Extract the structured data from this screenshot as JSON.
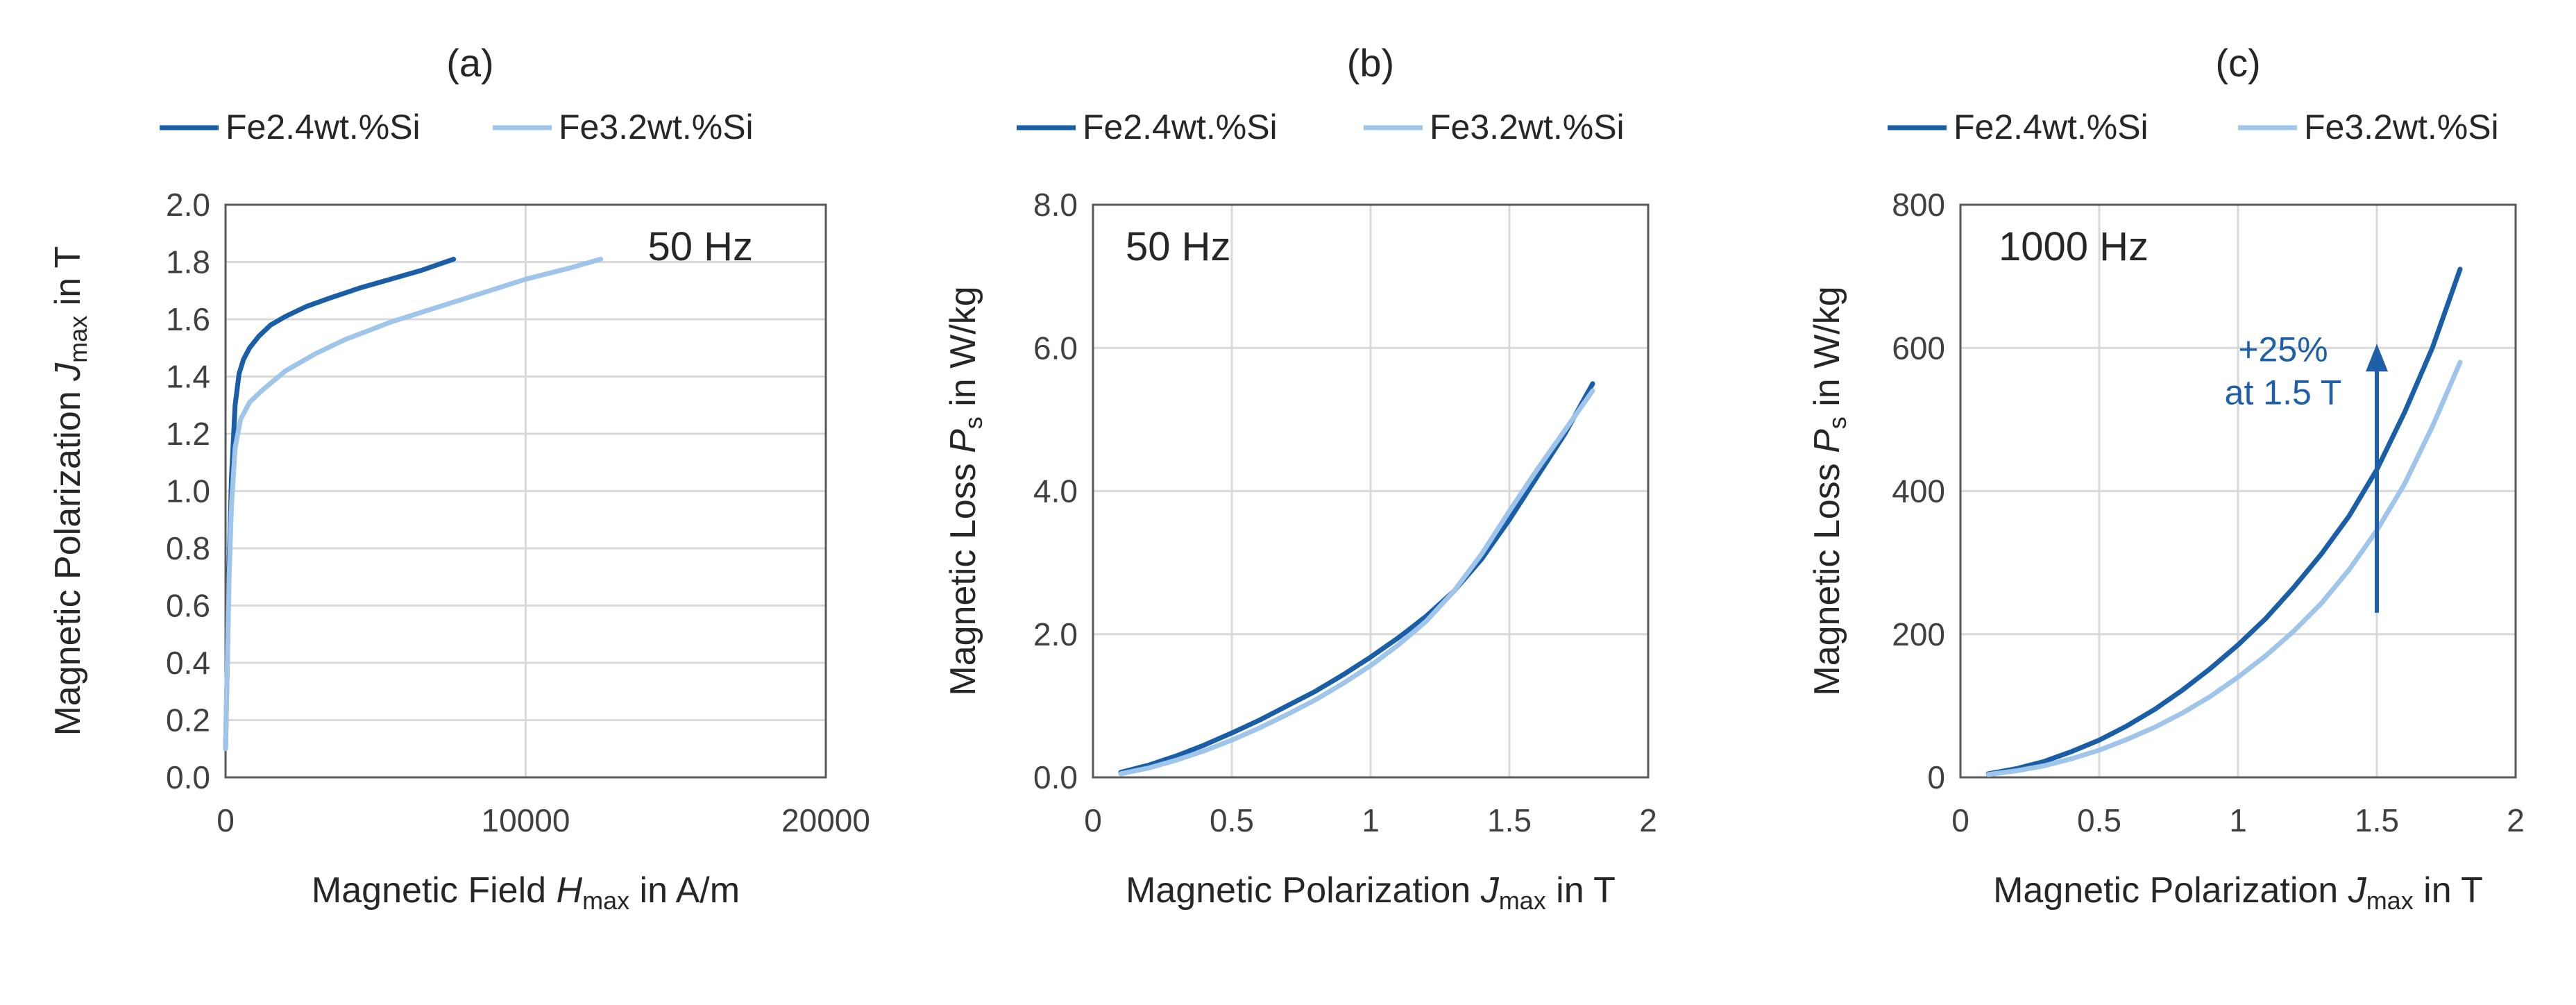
{
  "colors": {
    "series_dark": "#1a5ea8",
    "series_light": "#9fc5ea",
    "annotation": "#1f5fa8",
    "grid": "#d9d9d9"
  },
  "chart_data": [
    {
      "panel_label": "(a)",
      "type": "line",
      "title": "(a)",
      "frequency_label": "50 Hz",
      "xlabel": {
        "prefix": "Magnetic Field ",
        "symbol": "H",
        "sub": "max",
        "suffix": " in A/m"
      },
      "ylabel": {
        "prefix": "Magnetic Polarization ",
        "symbol": "J",
        "sub": "max",
        "suffix": " in T"
      },
      "xlim": [
        0,
        20000
      ],
      "ylim": [
        0,
        2.0
      ],
      "xticks": [
        0,
        10000,
        20000
      ],
      "xtick_labels": [
        "0",
        "10000",
        "20000"
      ],
      "yticks": [
        0,
        0.2,
        0.4,
        0.6,
        0.8,
        1.0,
        1.2,
        1.4,
        1.6,
        1.8,
        2.0
      ],
      "ytick_labels": [
        "0.0",
        "0.2",
        "0.4",
        "0.6",
        "0.8",
        "1.0",
        "1.2",
        "1.4",
        "1.6",
        "1.8",
        "2.0"
      ],
      "grid": true,
      "legend": [
        "Fe2.4wt.%Si",
        "Fe3.2wt.%Si"
      ],
      "series": [
        {
          "name": "Fe2.4wt.%Si",
          "color": "#1a5ea8",
          "x": [
            0,
            60,
            120,
            200,
            320,
            450,
            600,
            800,
            1100,
            1500,
            2000,
            2700,
            3500,
            4500,
            5500,
            6500,
            7600
          ],
          "y": [
            0.1,
            0.4,
            0.75,
            1.05,
            1.3,
            1.41,
            1.46,
            1.5,
            1.54,
            1.58,
            1.61,
            1.645,
            1.675,
            1.71,
            1.74,
            1.77,
            1.81
          ]
        },
        {
          "name": "Fe3.2wt.%Si",
          "color": "#9fc5ea",
          "x": [
            0,
            60,
            120,
            200,
            320,
            500,
            800,
            1200,
            2000,
            3000,
            4000,
            5500,
            7000,
            8500,
            10000,
            11500,
            12500
          ],
          "y": [
            0.1,
            0.4,
            0.7,
            0.95,
            1.15,
            1.25,
            1.31,
            1.35,
            1.42,
            1.48,
            1.53,
            1.59,
            1.64,
            1.69,
            1.74,
            1.78,
            1.81
          ]
        }
      ]
    },
    {
      "panel_label": "(b)",
      "type": "line",
      "title": "(b)",
      "frequency_label": "50 Hz",
      "xlabel": {
        "prefix": "Magnetic Polarization ",
        "symbol": "J",
        "sub": "max",
        "suffix": " in T"
      },
      "ylabel": {
        "prefix": "Magnetic Loss ",
        "symbol": "P",
        "sub": "s",
        "suffix": " in W/kg"
      },
      "xlim": [
        0,
        2
      ],
      "ylim": [
        0,
        8.0
      ],
      "xticks": [
        0,
        0.5,
        1,
        1.5,
        2
      ],
      "xtick_labels": [
        "0",
        "0.5",
        "1",
        "1.5",
        "2"
      ],
      "yticks": [
        0,
        2,
        4,
        6,
        8
      ],
      "ytick_labels": [
        "0.0",
        "2.0",
        "4.0",
        "6.0",
        "8.0"
      ],
      "grid": true,
      "legend": [
        "Fe2.4wt.%Si",
        "Fe3.2wt.%Si"
      ],
      "series": [
        {
          "name": "Fe2.4wt.%Si",
          "color": "#1a5ea8",
          "x": [
            0.1,
            0.2,
            0.3,
            0.4,
            0.5,
            0.6,
            0.7,
            0.8,
            0.9,
            1.0,
            1.1,
            1.2,
            1.3,
            1.4,
            1.5,
            1.6,
            1.7,
            1.8
          ],
          "y": [
            0.07,
            0.17,
            0.3,
            0.45,
            0.62,
            0.8,
            1.0,
            1.2,
            1.43,
            1.68,
            1.95,
            2.25,
            2.6,
            3.05,
            3.6,
            4.2,
            4.8,
            5.5
          ]
        },
        {
          "name": "Fe3.2wt.%Si",
          "color": "#9fc5ea",
          "x": [
            0.1,
            0.2,
            0.3,
            0.4,
            0.5,
            0.6,
            0.7,
            0.8,
            0.9,
            1.0,
            1.1,
            1.2,
            1.3,
            1.4,
            1.5,
            1.6,
            1.7,
            1.8
          ],
          "y": [
            0.05,
            0.13,
            0.24,
            0.37,
            0.52,
            0.69,
            0.88,
            1.08,
            1.31,
            1.56,
            1.85,
            2.18,
            2.6,
            3.12,
            3.72,
            4.3,
            4.85,
            5.4
          ]
        }
      ]
    },
    {
      "panel_label": "(c)",
      "type": "line",
      "title": "(c)",
      "frequency_label": "1000 Hz",
      "xlabel": {
        "prefix": "Magnetic Polarization ",
        "symbol": "J",
        "sub": "max",
        "suffix": " in T"
      },
      "ylabel": {
        "prefix": "Magnetic Loss ",
        "symbol": "P",
        "sub": "s",
        "suffix": " in W/kg"
      },
      "xlim": [
        0,
        2
      ],
      "ylim": [
        0,
        800
      ],
      "xticks": [
        0,
        0.5,
        1,
        1.5,
        2
      ],
      "xtick_labels": [
        "0",
        "0.5",
        "1",
        "1.5",
        "2"
      ],
      "yticks": [
        0,
        200,
        400,
        600,
        800
      ],
      "ytick_labels": [
        "0",
        "200",
        "400",
        "600",
        "800"
      ],
      "grid": true,
      "legend": [
        "Fe2.4wt.%Si",
        "Fe3.2wt.%Si"
      ],
      "annotation": {
        "lines": [
          "+25%",
          "at 1.5 T"
        ],
        "arrow_x": 1.5,
        "arrow_y_from": 230,
        "arrow_y_to": 600
      },
      "series": [
        {
          "name": "Fe2.4wt.%Si",
          "color": "#1a5ea8",
          "x": [
            0.1,
            0.2,
            0.3,
            0.4,
            0.5,
            0.6,
            0.7,
            0.8,
            0.9,
            1.0,
            1.1,
            1.2,
            1.3,
            1.4,
            1.5,
            1.6,
            1.7,
            1.8
          ],
          "y": [
            5,
            12,
            22,
            36,
            52,
            72,
            95,
            122,
            152,
            185,
            222,
            265,
            312,
            365,
            430,
            510,
            600,
            710
          ]
        },
        {
          "name": "Fe3.2wt.%Si",
          "color": "#9fc5ea",
          "x": [
            0.1,
            0.2,
            0.3,
            0.4,
            0.5,
            0.6,
            0.7,
            0.8,
            0.9,
            1.0,
            1.1,
            1.2,
            1.3,
            1.4,
            1.5,
            1.6,
            1.7,
            1.8
          ],
          "y": [
            4,
            9,
            16,
            26,
            38,
            53,
            70,
            90,
            113,
            140,
            170,
            204,
            243,
            290,
            345,
            410,
            490,
            580
          ]
        }
      ]
    }
  ]
}
